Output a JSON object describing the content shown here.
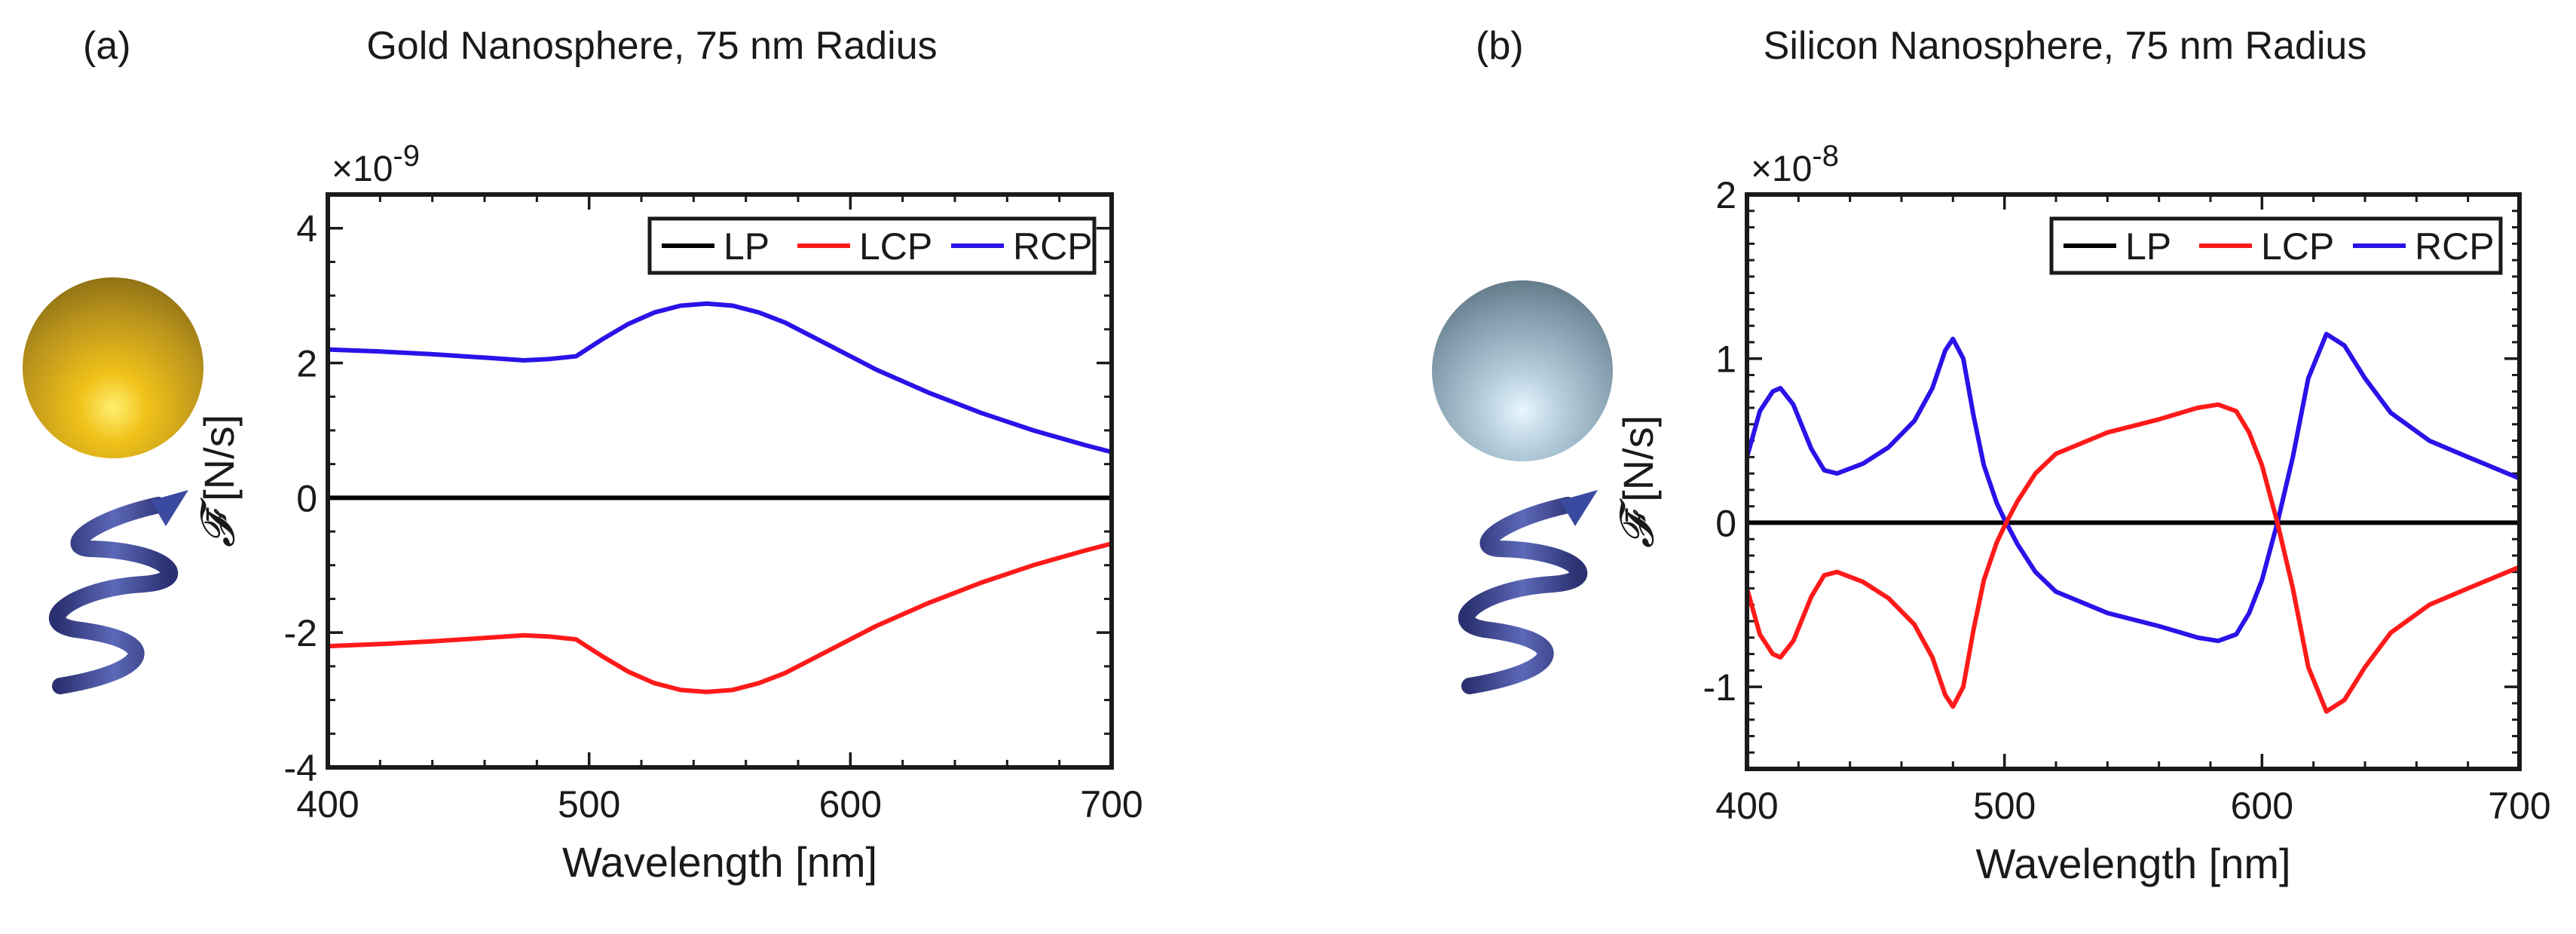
{
  "panels": [
    {
      "label": "(a)",
      "title": "Gold Nanosphere, 75 nm Radius",
      "sphere": "gold-nanosphere",
      "helix": "helix-arrow"
    },
    {
      "label": "(b)",
      "title": "Silicon Nanosphere, 75 nm Radius",
      "sphere": "silicon-nanosphere",
      "helix": "helix-arrow"
    }
  ],
  "colors": {
    "LP": "#000000",
    "LCP": "#ff1a1a",
    "RCP": "#2a12e8",
    "axis": "#1a1a1a"
  },
  "chart_data": [
    {
      "type": "line",
      "title": "Gold Nanosphere, 75 nm Radius",
      "xlabel": "Wavelength [nm]",
      "ylabel_symbol": "𝓕̄",
      "ylabel_unit": "[N/s]",
      "exponent": "×10",
      "exponent_power": "-9",
      "xlim": [
        400,
        700
      ],
      "ylim": [
        -4,
        4.5
      ],
      "xticks": [
        400,
        500,
        600,
        700
      ],
      "yticks": [
        -4,
        -2,
        0,
        2,
        4
      ],
      "legend": [
        "LP",
        "LCP",
        "RCP"
      ],
      "legend_position": "top-right",
      "series": [
        {
          "name": "LP",
          "x": [
            400,
            700
          ],
          "y": [
            0,
            0
          ]
        },
        {
          "name": "RCP",
          "x": [
            400,
            420,
            440,
            460,
            475,
            485,
            495,
            505,
            515,
            525,
            535,
            545,
            555,
            565,
            575,
            590,
            610,
            630,
            650,
            670,
            690,
            700
          ],
          "y": [
            2.2,
            2.17,
            2.13,
            2.08,
            2.04,
            2.06,
            2.1,
            2.35,
            2.58,
            2.75,
            2.85,
            2.88,
            2.85,
            2.75,
            2.6,
            2.3,
            1.9,
            1.56,
            1.26,
            1.0,
            0.78,
            0.68
          ]
        },
        {
          "name": "LCP",
          "x": [
            400,
            420,
            440,
            460,
            475,
            485,
            495,
            505,
            515,
            525,
            535,
            545,
            555,
            565,
            575,
            590,
            610,
            630,
            650,
            670,
            690,
            700
          ],
          "y": [
            -2.2,
            -2.17,
            -2.13,
            -2.08,
            -2.04,
            -2.06,
            -2.1,
            -2.35,
            -2.58,
            -2.75,
            -2.85,
            -2.88,
            -2.85,
            -2.75,
            -2.6,
            -2.3,
            -1.9,
            -1.56,
            -1.26,
            -1.0,
            -0.78,
            -0.68
          ]
        }
      ]
    },
    {
      "type": "line",
      "title": "Silicon Nanosphere, 75 nm Radius",
      "xlabel": "Wavelength [nm]",
      "ylabel_symbol": "𝓕̄",
      "ylabel_unit": "[N/s]",
      "exponent": "×10",
      "exponent_power": "-8",
      "xlim": [
        400,
        700
      ],
      "ylim": [
        -1.5,
        2
      ],
      "xticks": [
        400,
        500,
        600,
        700
      ],
      "yticks": [
        -1,
        0,
        1,
        2
      ],
      "legend": [
        "LP",
        "LCP",
        "RCP"
      ],
      "legend_position": "top-right",
      "series": [
        {
          "name": "LP",
          "x": [
            400,
            700
          ],
          "y": [
            0,
            0
          ]
        },
        {
          "name": "RCP",
          "x": [
            400,
            405,
            410,
            413,
            418,
            425,
            430,
            435,
            445,
            455,
            465,
            472,
            477,
            480,
            484,
            488,
            492,
            497,
            500,
            505,
            512,
            520,
            540,
            560,
            575,
            583,
            590,
            595,
            600,
            606,
            612,
            618,
            625,
            632,
            640,
            650,
            665,
            680,
            700
          ],
          "y": [
            0.4,
            0.68,
            0.8,
            0.82,
            0.72,
            0.45,
            0.32,
            0.3,
            0.36,
            0.46,
            0.62,
            0.82,
            1.05,
            1.12,
            1.0,
            0.65,
            0.35,
            0.12,
            0.02,
            -0.13,
            -0.3,
            -0.42,
            -0.55,
            -0.63,
            -0.7,
            -0.72,
            -0.68,
            -0.55,
            -0.35,
            0.0,
            0.4,
            0.88,
            1.15,
            1.08,
            0.88,
            0.67,
            0.5,
            0.4,
            0.27
          ]
        },
        {
          "name": "LCP",
          "x": [
            400,
            405,
            410,
            413,
            418,
            425,
            430,
            435,
            445,
            455,
            465,
            472,
            477,
            480,
            484,
            488,
            492,
            497,
            500,
            505,
            512,
            520,
            540,
            560,
            575,
            583,
            590,
            595,
            600,
            606,
            612,
            618,
            625,
            632,
            640,
            650,
            665,
            680,
            700
          ],
          "y": [
            -0.4,
            -0.68,
            -0.8,
            -0.82,
            -0.72,
            -0.45,
            -0.32,
            -0.3,
            -0.36,
            -0.46,
            -0.62,
            -0.82,
            -1.05,
            -1.12,
            -1.0,
            -0.65,
            -0.35,
            -0.12,
            -0.02,
            0.13,
            0.3,
            0.42,
            0.55,
            0.63,
            0.7,
            0.72,
            0.68,
            0.55,
            0.35,
            0.0,
            -0.4,
            -0.88,
            -1.15,
            -1.08,
            -0.88,
            -0.67,
            -0.5,
            -0.4,
            -0.27
          ]
        }
      ]
    }
  ]
}
